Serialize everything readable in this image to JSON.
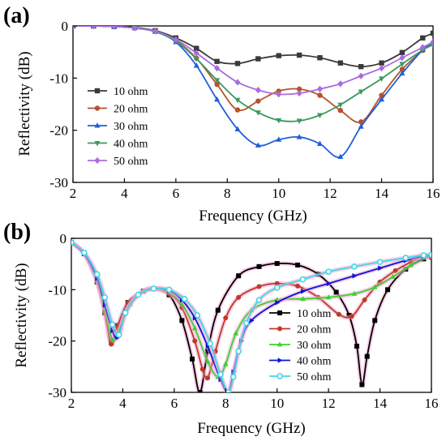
{
  "chart_data": [
    {
      "type": "line",
      "panel_label": "(a)",
      "xlabel": "Frequency (GHz)",
      "ylabel": "Reflectivity (dB)",
      "xlim": [
        2,
        16
      ],
      "ylim": [
        -30,
        0
      ],
      "xticks": [
        2,
        4,
        6,
        8,
        10,
        12,
        14,
        16
      ],
      "yticks": [
        0,
        -10,
        -20,
        -30
      ],
      "legend_position": "center-left",
      "series": [
        {
          "name": "10 ohm",
          "color": "#3a3a3a",
          "marker": "square",
          "x": [
            2,
            2.8,
            3.6,
            4.4,
            5.2,
            6.0,
            6.8,
            7.6,
            8.4,
            9.2,
            10.0,
            10.8,
            11.6,
            12.4,
            13.2,
            14.0,
            14.8,
            15.6,
            16.0
          ],
          "y": [
            0,
            0,
            -0.1,
            -0.3,
            -0.9,
            -2.3,
            -4.3,
            -6.8,
            -7.2,
            -6.3,
            -5.7,
            -5.6,
            -6.1,
            -7.1,
            -7.8,
            -7.1,
            -5.1,
            -2.3,
            -1.4
          ]
        },
        {
          "name": "20 ohm",
          "color": "#b5532d",
          "marker": "circle",
          "x": [
            2,
            2.8,
            3.6,
            4.4,
            5.2,
            6.0,
            6.8,
            7.6,
            8.4,
            9.2,
            10.0,
            10.8,
            11.6,
            12.4,
            13.2,
            14.0,
            14.8,
            15.6,
            16.0
          ],
          "y": [
            0,
            0,
            -0.1,
            -0.4,
            -1.0,
            -2.8,
            -6.2,
            -11.2,
            -16.1,
            -14.4,
            -12.5,
            -12.1,
            -13.3,
            -16.2,
            -18.4,
            -13.3,
            -8.3,
            -4.7,
            -3.3
          ]
        },
        {
          "name": "30 ohm",
          "color": "#1f5fd6",
          "marker": "triangle-up",
          "x": [
            2,
            2.8,
            3.6,
            4.4,
            5.2,
            6.0,
            6.8,
            7.6,
            8.4,
            9.2,
            10.0,
            10.8,
            11.6,
            12.4,
            13.2,
            14.0,
            14.8,
            15.6,
            16.0
          ],
          "y": [
            0,
            0,
            -0.1,
            -0.4,
            -1.1,
            -3.1,
            -7.6,
            -14.1,
            -19.8,
            -22.9,
            -21.8,
            -21.3,
            -22.6,
            -25.1,
            -19.3,
            -14.1,
            -9.1,
            -4.6,
            -3.1
          ]
        },
        {
          "name": "40 ohm",
          "color": "#3a9a5c",
          "marker": "triangle-down",
          "x": [
            2,
            2.8,
            3.6,
            4.4,
            5.2,
            6.0,
            6.8,
            7.6,
            8.4,
            9.2,
            10.0,
            10.8,
            11.6,
            12.4,
            13.2,
            14.0,
            14.8,
            15.6,
            16.0
          ],
          "y": [
            0,
            0,
            -0.1,
            -0.4,
            -1.1,
            -2.9,
            -6.3,
            -10.4,
            -14.2,
            -16.6,
            -18.1,
            -18.2,
            -17.1,
            -15.1,
            -12.6,
            -10.1,
            -7.3,
            -4.6,
            -3.6
          ]
        },
        {
          "name": "50 ohm",
          "color": "#a96be0",
          "marker": "diamond",
          "x": [
            2,
            2.8,
            3.6,
            4.4,
            5.2,
            6.0,
            6.8,
            7.6,
            8.4,
            9.2,
            10.0,
            10.8,
            11.6,
            12.4,
            13.2,
            14.0,
            14.8,
            15.6,
            16.0
          ],
          "y": [
            0,
            0,
            -0.1,
            -0.4,
            -1.0,
            -2.6,
            -5.2,
            -8.1,
            -10.8,
            -12.3,
            -13.1,
            -12.9,
            -12.1,
            -11.1,
            -9.6,
            -8.1,
            -6.1,
            -4.1,
            -3.1
          ]
        }
      ]
    },
    {
      "type": "line",
      "panel_label": "(b)",
      "xlabel": "Frequency (GHz)",
      "ylabel": "Reflectivity (dB)",
      "xlim": [
        2,
        16
      ],
      "ylim": [
        -30,
        0
      ],
      "xticks": [
        2,
        4,
        6,
        8,
        10,
        12,
        14,
        16
      ],
      "yticks": [
        0,
        -10,
        -20,
        -30
      ],
      "legend_position": "lower-right",
      "series": [
        {
          "name": "10 ohm",
          "color": "#000000",
          "marker": "square",
          "x": [
            2,
            2.5,
            3.0,
            3.3,
            3.55,
            3.8,
            4.2,
            4.8,
            5.2,
            5.8,
            6.3,
            6.7,
            7.0,
            7.3,
            7.7,
            8.5,
            9.3,
            10.0,
            10.8,
            11.6,
            12.3,
            12.8,
            13.1,
            13.3,
            13.5,
            13.8,
            14.3,
            15.0,
            15.7,
            16.0
          ],
          "y": [
            -0.8,
            -3.0,
            -8.5,
            -14.5,
            -20.3,
            -17.0,
            -12.5,
            -10.3,
            -9.8,
            -11.0,
            -16.0,
            -23.5,
            -30.0,
            -22.0,
            -14.0,
            -7.3,
            -5.5,
            -4.9,
            -5.2,
            -7.0,
            -10.5,
            -15.0,
            -21.0,
            -28.5,
            -23.0,
            -16.0,
            -10.0,
            -6.0,
            -4.0,
            -3.5
          ]
        },
        {
          "name": "20 ohm",
          "color": "#c03a23",
          "marker": "circle",
          "x": [
            2,
            2.5,
            3.0,
            3.3,
            3.55,
            3.8,
            4.2,
            4.8,
            5.2,
            5.8,
            6.3,
            6.8,
            7.1,
            7.3,
            7.6,
            8.0,
            8.5,
            9.3,
            10.0,
            10.8,
            11.6,
            12.4,
            12.9,
            13.4,
            14.0,
            14.6,
            15.2,
            15.7,
            16.0
          ],
          "y": [
            -0.8,
            -3.0,
            -8.5,
            -14.5,
            -20.6,
            -17.2,
            -12.6,
            -10.3,
            -9.8,
            -10.8,
            -13.5,
            -20.0,
            -25.5,
            -27.2,
            -22.0,
            -15.5,
            -11.5,
            -9.4,
            -8.8,
            -9.3,
            -11.5,
            -14.8,
            -15.2,
            -12.0,
            -8.5,
            -6.3,
            -4.6,
            -3.6,
            -3.8
          ]
        },
        {
          "name": "30 ohm",
          "color": "#3bd12e",
          "marker": "triangle-up",
          "x": [
            2,
            2.5,
            3.0,
            3.3,
            3.6,
            3.85,
            4.3,
            4.8,
            5.2,
            5.8,
            6.3,
            6.8,
            7.3,
            7.7,
            8.0,
            8.4,
            9.0,
            10.0,
            11.0,
            12.0,
            13.0,
            13.8,
            14.5,
            15.2,
            15.7,
            16.0
          ],
          "y": [
            -0.8,
            -3.0,
            -8.2,
            -14.0,
            -19.8,
            -17.8,
            -12.8,
            -10.3,
            -9.8,
            -10.5,
            -12.8,
            -17.5,
            -24.0,
            -27.0,
            -24.5,
            -18.5,
            -14.0,
            -12.0,
            -11.8,
            -11.5,
            -10.8,
            -9.5,
            -7.5,
            -5.2,
            -3.8,
            -3.5
          ]
        },
        {
          "name": "40 ohm",
          "color": "#0a14d8",
          "marker": "triangle-right",
          "x": [
            2,
            2.5,
            3.0,
            3.3,
            3.6,
            3.8,
            4.1,
            4.6,
            5.2,
            5.8,
            6.3,
            6.8,
            7.3,
            7.8,
            8.1,
            8.3,
            8.6,
            9.0,
            10.0,
            11.0,
            12.0,
            13.0,
            14.0,
            15.0,
            15.7,
            16.0
          ],
          "y": [
            -0.8,
            -3.0,
            -7.8,
            -13.0,
            -18.0,
            -19.3,
            -14.5,
            -11.0,
            -9.8,
            -10.2,
            -12.0,
            -15.5,
            -21.0,
            -27.5,
            -30.0,
            -26.0,
            -20.0,
            -16.0,
            -12.5,
            -10.3,
            -8.8,
            -7.3,
            -5.8,
            -4.3,
            -3.5,
            -3.4
          ]
        },
        {
          "name": "50 ohm",
          "color": "#3ed7e8",
          "marker": "circle-hollow",
          "x": [
            2,
            2.5,
            3.0,
            3.3,
            3.6,
            3.85,
            4.1,
            4.6,
            5.2,
            5.8,
            6.4,
            6.9,
            7.4,
            7.8,
            8.1,
            8.3,
            8.5,
            8.8,
            9.3,
            10.0,
            11.0,
            12.0,
            13.0,
            14.0,
            15.0,
            15.7,
            16.0
          ],
          "y": [
            -0.8,
            -2.8,
            -7.0,
            -11.5,
            -16.8,
            -18.8,
            -14.5,
            -11.0,
            -9.8,
            -10.0,
            -11.8,
            -15.0,
            -20.5,
            -26.5,
            -30.0,
            -27.0,
            -22.0,
            -16.5,
            -12.0,
            -9.6,
            -8.0,
            -6.5,
            -5.5,
            -4.6,
            -3.8,
            -3.3,
            -3.2
          ]
        }
      ]
    }
  ]
}
